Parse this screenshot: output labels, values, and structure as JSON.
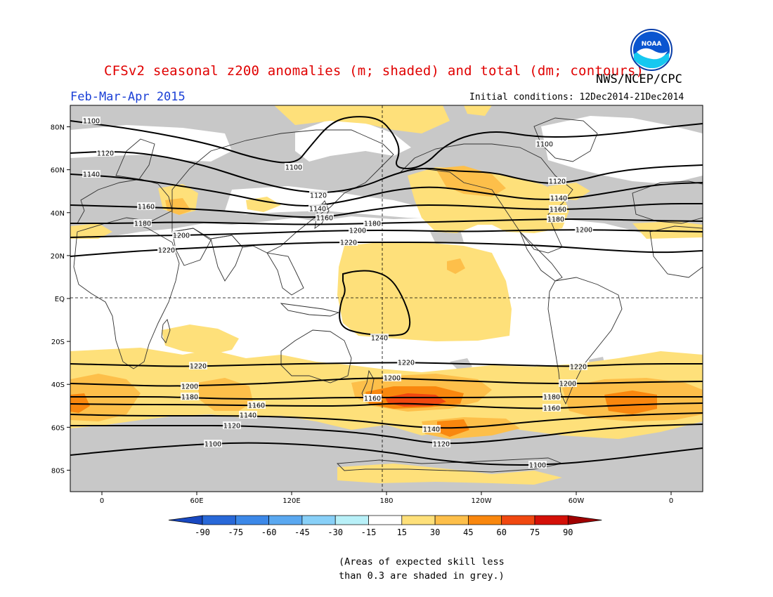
{
  "header": {
    "title": "CFSv2 seasonal z200 anomalies (m; shaded) and total (dm; contours)",
    "season": "Feb-Mar-Apr 2015",
    "agency": "NWS/NCEP/CPC",
    "initial_conditions": "Initial conditions: 12Dec2014-21Dec2014",
    "logo_text": "NOAA"
  },
  "colors": {
    "grey_low_skill": "#c8c8c8",
    "c15_30": "#fee07a",
    "c30_45": "#fdbf4a",
    "c45_60": "#f9870e",
    "c60_75": "#f04810",
    "c75_90": "#d41008",
    "gt90": "#a00000",
    "n15_30": "#b8f0f8",
    "n30_45": "#88d0f8",
    "n45_60": "#5aa8f0",
    "n60_75": "#3c88e8",
    "n75_90": "#2868d8",
    "lt_n90": "#1848c0",
    "coast": "#303030",
    "contour": "#000000"
  },
  "map": {
    "lat_labels": [
      "80N",
      "60N",
      "40N",
      "20N",
      "EQ",
      "20S",
      "40S",
      "60S",
      "80S"
    ],
    "lon_labels": [
      "0",
      "60E",
      "120E",
      "180",
      "120W",
      "60W",
      "0"
    ],
    "contours": [
      {
        "value": 1100,
        "kind": "north",
        "labels": [
          "1100",
          "1100",
          "1100"
        ]
      },
      {
        "value": 1120,
        "kind": "north",
        "labels": [
          "1120",
          "1120",
          "1120"
        ]
      },
      {
        "value": 1140,
        "kind": "north",
        "labels": [
          "1140",
          "1140",
          "1140"
        ]
      },
      {
        "value": 1160,
        "kind": "north",
        "labels": [
          "1160",
          "1160",
          "1160"
        ]
      },
      {
        "value": 1180,
        "kind": "north",
        "labels": [
          "1180",
          "1180",
          "1180"
        ]
      },
      {
        "value": 1200,
        "kind": "north",
        "labels": [
          "1200",
          "1200",
          "1200"
        ]
      },
      {
        "value": 1220,
        "kind": "north",
        "labels": [
          "1220",
          "1220"
        ]
      },
      {
        "value": 1240,
        "kind": "closed",
        "labels": [
          "1240"
        ]
      },
      {
        "value": 1220,
        "kind": "south",
        "labels": [
          "1220",
          "1220",
          "1220"
        ]
      },
      {
        "value": 1200,
        "kind": "south",
        "labels": [
          "1200",
          "1200",
          "1200"
        ]
      },
      {
        "value": 1180,
        "kind": "south",
        "labels": [
          "1180",
          "1180",
          "1180"
        ]
      },
      {
        "value": 1160,
        "kind": "south",
        "labels": [
          "1160",
          "1160",
          "1160"
        ]
      },
      {
        "value": 1140,
        "kind": "south",
        "labels": [
          "1140",
          "1140"
        ]
      },
      {
        "value": 1120,
        "kind": "south",
        "labels": [
          "1120",
          "1120"
        ]
      },
      {
        "value": 1100,
        "kind": "south",
        "labels": [
          "1100",
          "1100"
        ]
      }
    ]
  },
  "colorbar": {
    "ticks": [
      "-90",
      "-75",
      "-60",
      "-45",
      "-30",
      "-15",
      "15",
      "30",
      "45",
      "60",
      "75",
      "90"
    ]
  },
  "footnote": {
    "line1": "(Areas of expected skill less",
    "line2": "than 0.3 are shaded in grey.)"
  }
}
